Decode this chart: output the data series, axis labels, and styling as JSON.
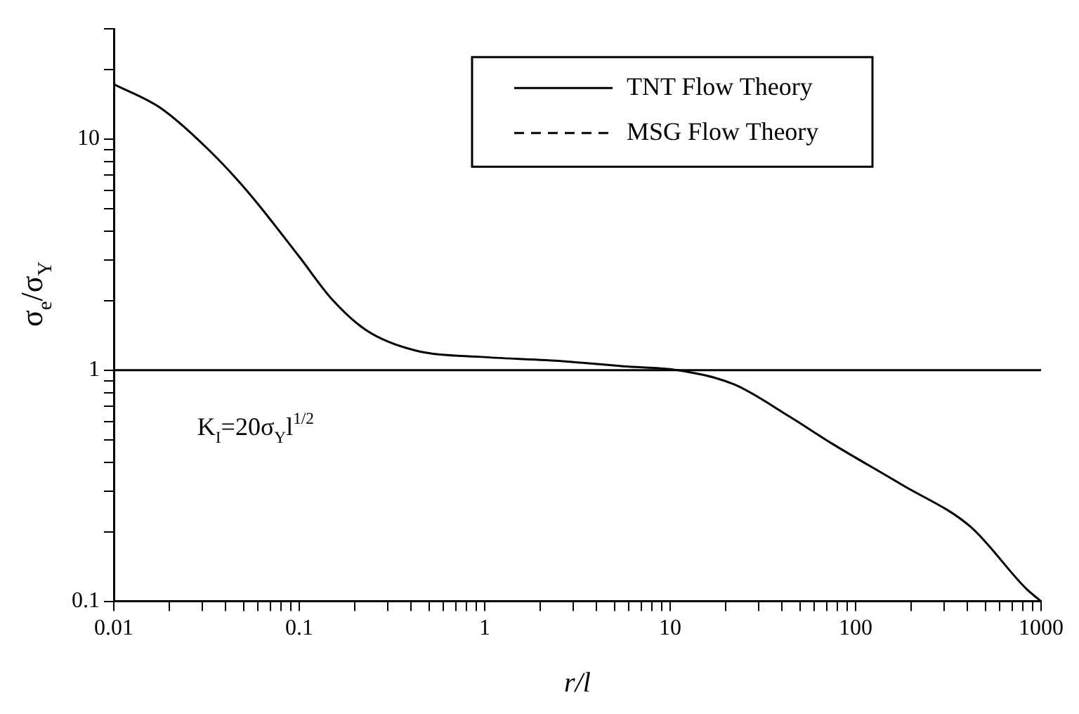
{
  "chart_data": {
    "type": "line",
    "xlabel": "r/l",
    "ylabel": "σ$_{e}$/σ$_{Y}$",
    "log": "xy",
    "legend": "top right",
    "marker": "none",
    "xlim": [
      0.01,
      1000
    ],
    "ylim": [
      0.1,
      30
    ],
    "xticks": [
      0.01,
      {
        "value": 0.02,
        "label": null
      },
      {
        "value": 0.03,
        "label": null
      },
      {
        "value": 0.04,
        "label": null
      },
      {
        "value": 0.05,
        "label": null
      },
      {
        "value": 0.06,
        "label": null
      },
      {
        "value": 0.07,
        "label": null
      },
      {
        "value": 0.08,
        "label": null
      },
      {
        "value": 0.09,
        "label": null
      },
      0.1,
      {
        "value": 0.2,
        "label": null
      },
      {
        "value": 0.3,
        "label": null
      },
      {
        "value": 0.4,
        "label": null
      },
      {
        "value": 0.5,
        "label": null
      },
      {
        "value": 0.6,
        "label": null
      },
      {
        "value": 0.7,
        "label": null
      },
      {
        "value": 0.8,
        "label": null
      },
      {
        "value": 0.9,
        "label": null
      },
      1,
      {
        "value": 2,
        "label": null
      },
      {
        "value": 3,
        "label": null
      },
      {
        "value": 4,
        "label": null
      },
      {
        "value": 5,
        "label": null
      },
      {
        "value": 6,
        "label": null
      },
      {
        "value": 7,
        "label": null
      },
      {
        "value": 8,
        "label": null
      },
      {
        "value": 9,
        "label": null
      },
      10,
      {
        "value": 20,
        "label": null
      },
      {
        "value": 30,
        "label": null
      },
      {
        "value": 40,
        "label": null
      },
      {
        "value": 50,
        "label": null
      },
      {
        "value": 60,
        "label": null
      },
      {
        "value": 70,
        "label": null
      },
      {
        "value": 80,
        "label": null
      },
      {
        "value": 90,
        "label": null
      },
      100,
      {
        "value": 200,
        "label": null
      },
      {
        "value": 300,
        "label": null
      },
      {
        "value": 400,
        "label": null
      },
      {
        "value": 500,
        "label": null
      },
      {
        "value": 600,
        "label": null
      },
      {
        "value": 700,
        "label": null
      },
      {
        "value": 800,
        "label": null
      },
      {
        "value": 900,
        "label": null
      },
      1000
    ],
    "yticks": [
      0.1,
      {
        "value": 0.2,
        "label": null
      },
      {
        "value": 0.3,
        "label": null
      },
      {
        "value": 0.4,
        "label": null
      },
      {
        "value": 0.5,
        "label": null
      },
      {
        "value": 0.6,
        "label": null
      },
      {
        "value": 0.7,
        "label": null
      },
      {
        "value": 0.8,
        "label": null
      },
      {
        "value": 0.9,
        "label": null
      },
      1,
      {
        "value": 2,
        "label": null
      },
      {
        "value": 3,
        "label": null
      },
      {
        "value": 4,
        "label": null
      },
      {
        "value": 5,
        "label": null
      },
      {
        "value": 6,
        "label": null
      },
      {
        "value": 7,
        "label": null
      },
      {
        "value": 8,
        "label": null
      },
      {
        "value": 9,
        "label": null
      },
      10,
      {
        "value": 20,
        "label": null
      },
      {
        "value": 30,
        "label": null
      }
    ],
    "ref_lines": [
      {
        "axis": "y",
        "value": 1,
        "color": "#000000"
      }
    ],
    "annotations": [
      "K$_{I}$=20σ$_{Y}$l$^{1/2}$"
    ],
    "series": [
      {
        "name": "TNT Flow Theory",
        "color": "#000000",
        "line_style": "solid",
        "x": [
          0.01,
          0.018,
          0.032,
          0.053,
          0.1,
          0.15,
          0.23,
          0.42,
          1,
          2.4,
          5.6,
          11,
          22,
          44,
          75,
          177,
          417,
          835,
          1000
        ],
        "values": [
          17.3,
          13.6,
          9.1,
          5.9,
          3.1,
          2.03,
          1.49,
          1.22,
          1.14,
          1.1,
          1.04,
          1,
          0.87,
          0.63,
          0.48,
          0.32,
          0.21,
          0.113,
          0.1
        ]
      },
      {
        "name": "MSG Flow Theory",
        "color": "#000000",
        "line_style": "dashed"
      }
    ]
  }
}
